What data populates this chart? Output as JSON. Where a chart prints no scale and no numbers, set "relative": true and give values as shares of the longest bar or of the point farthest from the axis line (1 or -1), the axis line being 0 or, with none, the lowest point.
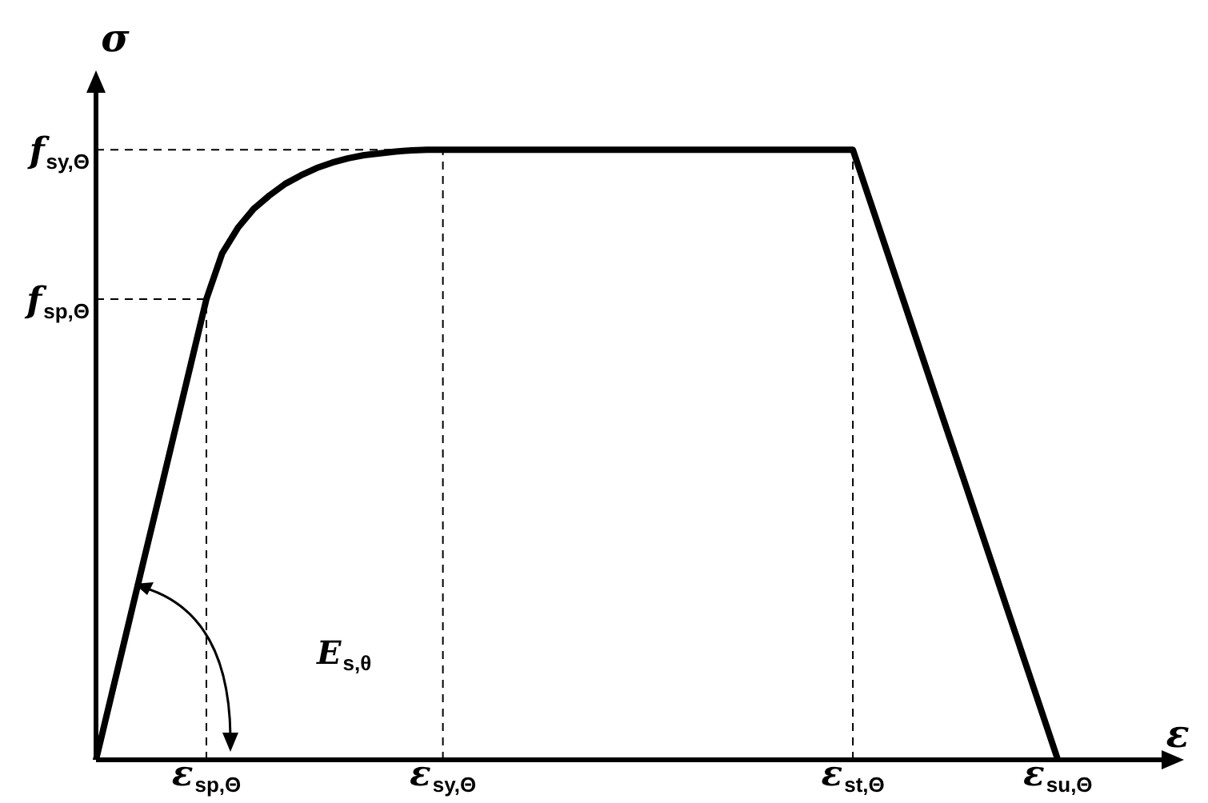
{
  "chart_data": {
    "type": "line",
    "relative": true,
    "xlabel": "ε",
    "ylabel": "σ",
    "marker": "none",
    "line_style": "solid",
    "categories": [
      null,
      null,
      null,
      null,
      null,
      null,
      null,
      "ε$_{sp,Θ}$",
      null,
      null,
      null,
      null,
      null,
      null,
      null,
      null,
      null,
      null,
      null,
      null,
      null,
      null,
      "ε$_{sy,Θ}$",
      null,
      null,
      null,
      null,
      null,
      null,
      null,
      null,
      null,
      null,
      null,
      null,
      null,
      null,
      null,
      null,
      null,
      null,
      null,
      null,
      null,
      null,
      null,
      null,
      null,
      "ε$_{st,Θ}$",
      null,
      null,
      null,
      null,
      null,
      null,
      null,
      null,
      null,
      null,
      null,
      null,
      "ε$_{su,Θ}$",
      null,
      null,
      null,
      null,
      null,
      null,
      null,
      null
    ],
    "series": [
      {
        "color": "#000000",
        "values": [
          0,
          0.108,
          0.216,
          0.324,
          0.431,
          0.539,
          0.647,
          0.755,
          0.83,
          0.872,
          0.903,
          0.925,
          0.944,
          0.958,
          0.97,
          0.979,
          0.986,
          0.991,
          0.994,
          0.997,
          0.999,
          1,
          1,
          1,
          1,
          1,
          1,
          1,
          1,
          1,
          1,
          1,
          1,
          1,
          1,
          1,
          1,
          1,
          1,
          1,
          1,
          1,
          1,
          1,
          1,
          1,
          1,
          1,
          1,
          0.923,
          0.846,
          0.769,
          0.692,
          0.615,
          0.538,
          0.462,
          0.385,
          0.308,
          0.231,
          0.154,
          0.077,
          0,
          null,
          null,
          null,
          null,
          null,
          null,
          null,
          null
        ]
      }
    ],
    "ref_lines": [
      {
        "axis": "y",
        "value": 1,
        "label": "f$_{sy,Θ}$",
        "line_style": "dashed",
        "color": "#000000"
      },
      {
        "axis": "y",
        "value": 0.755,
        "label": "f$_{sp,Θ}$",
        "line_style": "dashed",
        "color": "#000000"
      },
      {
        "axis": "x",
        "value": "ε$_{sp,Θ}$",
        "line_style": "dashed",
        "color": "#000000"
      },
      {
        "axis": "x",
        "value": "ε$_{sy,Θ}$",
        "line_style": "dashed",
        "color": "#000000"
      },
      {
        "axis": "x",
        "value": "ε$_{st,Θ}$",
        "line_style": "dashed",
        "color": "#000000"
      }
    ],
    "annotations": [
      "E$_{s,θ}$"
    ]
  }
}
